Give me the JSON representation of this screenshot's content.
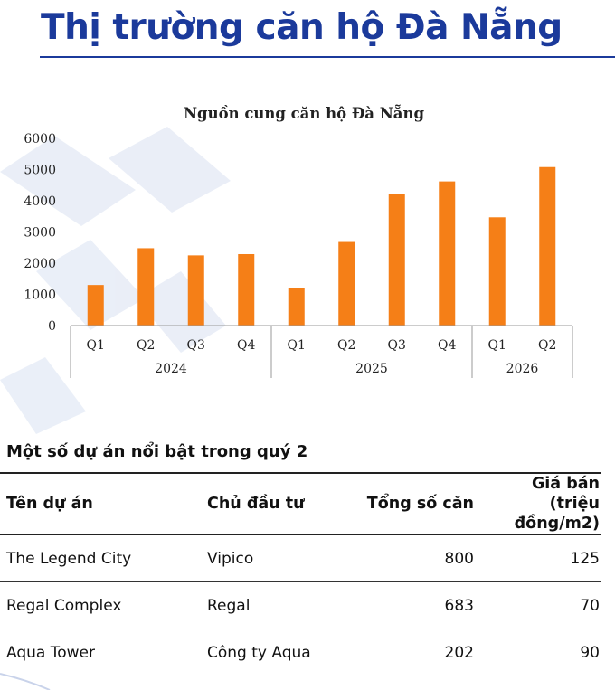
{
  "page": {
    "title": "Thị trường căn hộ Đà Nẵng",
    "colors": {
      "title": "#1b3a9b",
      "bar": "#f57f17",
      "decoration": "#dfe6f4"
    }
  },
  "chart_data": {
    "type": "bar",
    "title": "Nguồn cung căn hộ Đà Nẵng",
    "xlabel": "",
    "ylabel": "",
    "ylim": [
      0,
      6000
    ],
    "yticks": [
      0,
      1000,
      2000,
      3000,
      4000,
      5000,
      6000
    ],
    "grid": false,
    "legend": "none",
    "categories": [
      "Q1",
      "Q2",
      "Q3",
      "Q4",
      "Q1",
      "Q2",
      "Q3",
      "Q4",
      "Q1",
      "Q2"
    ],
    "groups": [
      {
        "label": "2024",
        "count": 4
      },
      {
        "label": "2025",
        "count": 4
      },
      {
        "label": "2026",
        "count": 2
      }
    ],
    "values": [
      1300,
      2480,
      2250,
      2290,
      1200,
      2680,
      4220,
      4620,
      3470,
      5080
    ]
  },
  "projects": {
    "section_title": "Một số dự án nổi bật trong quý 2",
    "headers": {
      "name": "Tên dự án",
      "investor": "Chủ đầu tư",
      "units": "Tổng số căn",
      "price_line1": "Giá bán (triệu",
      "price_line2": "đồng/m2)"
    },
    "rows": [
      {
        "name": "The Legend City",
        "investor": "Vipico",
        "units": "800",
        "price": "125"
      },
      {
        "name": "Regal Complex",
        "investor": "Regal",
        "units": "683",
        "price": "70"
      },
      {
        "name": "Aqua Tower",
        "investor": "Công ty Aqua",
        "units": "202",
        "price": "90"
      }
    ]
  }
}
